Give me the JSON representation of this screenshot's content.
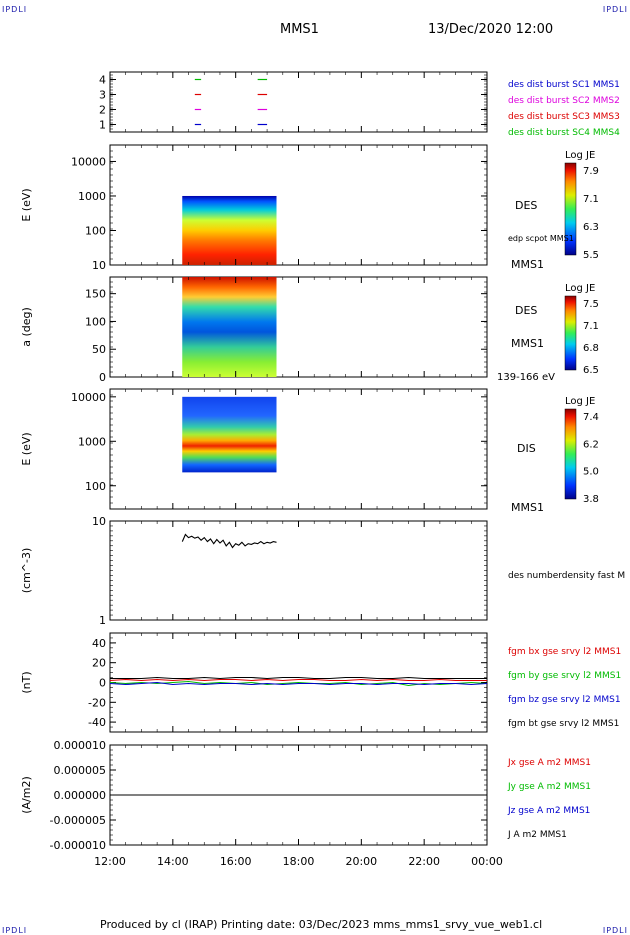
{
  "header": {
    "corner_tl": "IPDLI",
    "corner_tr": "IPDLI",
    "corner_bl": "IPDLI",
    "corner_br": "IPDLI",
    "spacecraft": "MMS1",
    "datetime": "13/Dec/2020 12:00"
  },
  "footer": {
    "text": "Produced by cl (IRAP)   Printing date: 03/Dec/2023   mms_mms1_srvy_vue_web1.cl"
  },
  "colors": {
    "blue": "#0000cc",
    "magenta": "#dd00dd",
    "red": "#dd0000",
    "green": "#00bb00",
    "black": "#000000"
  },
  "chart_data": [
    {
      "type": "line",
      "panel": "availability",
      "ylim": [
        0.5,
        4.5
      ],
      "yticks": [
        "1",
        "2",
        "3",
        "4"
      ],
      "legend": [
        {
          "label": "des dist burst SC1 MMS1",
          "color": "#0000cc"
        },
        {
          "label": "des dist burst SC2 MMS2",
          "color": "#dd00dd"
        },
        {
          "label": "des dist burst SC3 MMS3",
          "color": "#dd0000"
        },
        {
          "label": "des dist burst SC4 MMS4",
          "color": "#00bb00"
        }
      ],
      "segments": [
        {
          "level": 4,
          "color": "#00bb00",
          "x": [
            [
              14.7,
              14.9
            ],
            [
              16.7,
              17.0
            ]
          ]
        },
        {
          "level": 3,
          "color": "#dd0000",
          "x": [
            [
              14.7,
              14.9
            ],
            [
              16.7,
              17.0
            ]
          ]
        },
        {
          "level": 2,
          "color": "#dd00dd",
          "x": [
            [
              14.7,
              14.9
            ],
            [
              16.7,
              17.0
            ]
          ]
        },
        {
          "level": 1,
          "color": "#0000cc",
          "x": [
            [
              14.7,
              14.9
            ],
            [
              16.7,
              17.0
            ]
          ]
        }
      ]
    },
    {
      "type": "heatmap",
      "panel": "des-energy",
      "ylabel": "E (eV)",
      "scale": "log",
      "ylim": [
        10,
        30000
      ],
      "yticks": [
        "10",
        "100",
        "1000",
        "10000"
      ],
      "x_range": [
        14.3,
        17.3
      ],
      "y_range": [
        10,
        1000
      ],
      "right_labels": [
        "DES",
        "edp scpot MMS1",
        "MMS1"
      ],
      "colorbar": {
        "title": "Log JE",
        "ticks": [
          "7.9",
          "7.1",
          "6.3",
          "5.5"
        ]
      }
    },
    {
      "type": "heatmap",
      "panel": "des-pitch",
      "ylabel": "a (deg)",
      "ylim": [
        0,
        180
      ],
      "yticks": [
        "0",
        "50",
        "100",
        "150"
      ],
      "x_range": [
        14.3,
        17.3
      ],
      "right_labels": [
        "DES",
        "MMS1",
        "139-166 eV"
      ],
      "colorbar": {
        "title": "Log JE",
        "ticks": [
          "7.5",
          "7.1",
          "6.8",
          "6.5"
        ]
      }
    },
    {
      "type": "heatmap",
      "panel": "dis-energy",
      "ylabel": "E (eV)",
      "scale": "log",
      "ylim": [
        30,
        15000
      ],
      "yticks": [
        "100",
        "1000",
        "10000"
      ],
      "x_range": [
        14.3,
        17.3
      ],
      "y_range": [
        200,
        10000
      ],
      "right_labels": [
        "DIS",
        "MMS1"
      ],
      "colorbar": {
        "title": "Log JE",
        "ticks": [
          "7.4",
          "6.2",
          "5.0",
          "3.8"
        ]
      }
    },
    {
      "type": "line",
      "panel": "density",
      "ylabel": "(cm^-3)",
      "scale": "log",
      "ylim": [
        1,
        10
      ],
      "yticks": [
        "1",
        "10"
      ],
      "series": [
        {
          "name": "des numberdensity fast M",
          "color": "#000000",
          "x": [
            14.3,
            14.4,
            14.5,
            14.6,
            14.7,
            14.8,
            14.9,
            15.0,
            15.1,
            15.2,
            15.3,
            15.4,
            15.5,
            15.6,
            15.7,
            15.8,
            15.9,
            16.0,
            16.1,
            16.2,
            16.3,
            16.4,
            16.5,
            16.6,
            16.7,
            16.8,
            16.9,
            17.0,
            17.1,
            17.2,
            17.3
          ],
          "y": [
            6.2,
            7.3,
            6.8,
            7.0,
            6.7,
            6.9,
            6.4,
            6.8,
            6.2,
            6.6,
            5.9,
            6.5,
            6.0,
            6.4,
            5.6,
            6.1,
            5.4,
            5.9,
            5.7,
            6.1,
            5.6,
            5.9,
            5.8,
            6.0,
            5.9,
            6.2,
            5.9,
            6.1,
            6.0,
            6.2,
            6.1
          ]
        }
      ]
    },
    {
      "type": "line",
      "panel": "fgm",
      "ylabel": "(nT)",
      "ylim": [
        -50,
        50
      ],
      "yticks": [
        "-40",
        "-20",
        "0",
        "20",
        "40"
      ],
      "x": [
        12,
        12.5,
        13,
        13.5,
        14,
        14.5,
        15,
        15.5,
        16,
        16.5,
        17,
        17.5,
        18,
        18.5,
        19,
        19.5,
        20,
        20.5,
        21,
        21.5,
        22,
        22.5,
        23,
        23.5,
        24
      ],
      "series": [
        {
          "name": "fgm bx gse srvy l2 MMS1",
          "color": "#dd0000",
          "values": [
            2,
            3,
            2,
            3,
            2,
            3,
            2,
            3,
            3,
            2,
            3,
            2,
            3,
            3,
            2,
            2,
            3,
            2,
            3,
            2,
            2,
            3,
            2,
            2,
            2
          ]
        },
        {
          "name": "fgm by gse srvy l2 MMS1",
          "color": "#00bb00",
          "values": [
            0,
            -1,
            0,
            -1,
            0,
            1,
            -1,
            0,
            -1,
            0,
            -2,
            -1,
            0,
            -1,
            -1,
            0,
            -2,
            -1,
            0,
            -3,
            -1,
            -2,
            -1,
            0,
            -1
          ]
        },
        {
          "name": "fgm bz gse srvy l2 MMS1",
          "color": "#0000cc",
          "values": [
            -1,
            -2,
            -1,
            0,
            -2,
            -1,
            -2,
            -1,
            -1,
            -2,
            -1,
            -2,
            -1,
            -1,
            -2,
            -1,
            -1,
            -2,
            -1,
            -1,
            -2,
            -1,
            -1,
            -2,
            -1
          ]
        },
        {
          "name": "fgm bt gse srvy l2 MMS1",
          "color": "#000000",
          "values": [
            4,
            4,
            4,
            5,
            4,
            4,
            5,
            4,
            5,
            5,
            4,
            5,
            5,
            4,
            4,
            5,
            5,
            4,
            4,
            5,
            4,
            4,
            4,
            4,
            4
          ]
        }
      ]
    },
    {
      "type": "line",
      "panel": "current",
      "ylabel": "(A/m2)",
      "ylim": [
        -1e-05,
        1e-05
      ],
      "yticks": [
        "-0.000010",
        "-0.000005",
        "0.000000",
        "0.000005",
        "0.000010"
      ],
      "xticks": [
        "12:00",
        "14:00",
        "16:00",
        "18:00",
        "20:00",
        "22:00",
        "00:00"
      ],
      "series": [
        {
          "name": "Jx gse A m2 MMS1",
          "color": "#dd0000"
        },
        {
          "name": "Jy gse A m2 MMS1",
          "color": "#00bb00"
        },
        {
          "name": "Jz gse A m2 MMS1",
          "color": "#0000cc"
        },
        {
          "name": "J A m2 MMS1",
          "color": "#000000",
          "x": [
            12,
            24
          ],
          "values": [
            0,
            0
          ]
        }
      ]
    }
  ]
}
